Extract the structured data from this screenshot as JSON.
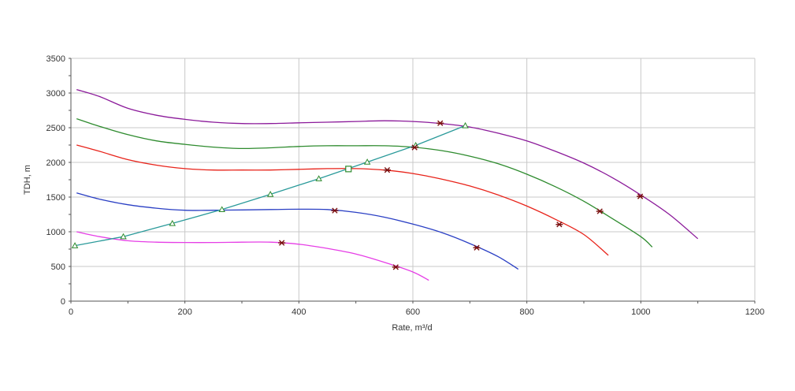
{
  "chart_data": {
    "type": "line",
    "title": "",
    "xlabel": "Rate, m³/d",
    "ylabel": "TDH, m",
    "xlim": [
      0,
      1200
    ],
    "ylim": [
      0,
      3500
    ],
    "x_ticks": [
      0,
      200,
      400,
      600,
      800,
      1000,
      1200
    ],
    "y_ticks": [
      0,
      500,
      1000,
      1500,
      2000,
      2500,
      3000,
      3500
    ],
    "grid": true,
    "legend": "none",
    "series": [
      {
        "color": "#8b1a9a",
        "points": [
          [
            10,
            3050
          ],
          [
            50,
            2950
          ],
          [
            100,
            2780
          ],
          [
            150,
            2680
          ],
          [
            200,
            2620
          ],
          [
            250,
            2580
          ],
          [
            300,
            2560
          ],
          [
            350,
            2560
          ],
          [
            400,
            2570
          ],
          [
            450,
            2580
          ],
          [
            500,
            2590
          ],
          [
            550,
            2600
          ],
          [
            600,
            2590
          ],
          [
            650,
            2560
          ],
          [
            700,
            2510
          ],
          [
            750,
            2420
          ],
          [
            800,
            2310
          ],
          [
            850,
            2160
          ],
          [
            900,
            1990
          ],
          [
            950,
            1780
          ],
          [
            1000,
            1530
          ],
          [
            1050,
            1250
          ],
          [
            1100,
            900
          ]
        ],
        "markers": [
          [
            648,
            2565
          ],
          [
            999,
            1510
          ]
        ]
      },
      {
        "color": "#2e8b2e",
        "points": [
          [
            10,
            2630
          ],
          [
            50,
            2520
          ],
          [
            100,
            2400
          ],
          [
            150,
            2310
          ],
          [
            200,
            2260
          ],
          [
            250,
            2220
          ],
          [
            300,
            2200
          ],
          [
            350,
            2210
          ],
          [
            400,
            2230
          ],
          [
            450,
            2240
          ],
          [
            500,
            2240
          ],
          [
            550,
            2240
          ],
          [
            600,
            2220
          ],
          [
            650,
            2170
          ],
          [
            700,
            2090
          ],
          [
            750,
            1980
          ],
          [
            800,
            1830
          ],
          [
            850,
            1650
          ],
          [
            900,
            1440
          ],
          [
            950,
            1190
          ],
          [
            1000,
            930
          ],
          [
            1020,
            780
          ]
        ],
        "markers": [
          [
            603,
            2215
          ],
          [
            928,
            1295
          ]
        ]
      },
      {
        "color": "#e8231a",
        "points": [
          [
            10,
            2250
          ],
          [
            50,
            2160
          ],
          [
            100,
            2040
          ],
          [
            150,
            1960
          ],
          [
            200,
            1910
          ],
          [
            250,
            1890
          ],
          [
            300,
            1890
          ],
          [
            350,
            1890
          ],
          [
            400,
            1900
          ],
          [
            450,
            1910
          ],
          [
            500,
            1910
          ],
          [
            550,
            1890
          ],
          [
            600,
            1840
          ],
          [
            650,
            1760
          ],
          [
            700,
            1660
          ],
          [
            750,
            1530
          ],
          [
            800,
            1370
          ],
          [
            850,
            1180
          ],
          [
            900,
            960
          ],
          [
            943,
            660
          ]
        ],
        "markers": [
          [
            555,
            1890
          ],
          [
            857,
            1105
          ]
        ]
      },
      {
        "color": "#2a3fc4",
        "points": [
          [
            10,
            1560
          ],
          [
            50,
            1470
          ],
          [
            100,
            1390
          ],
          [
            150,
            1340
          ],
          [
            200,
            1310
          ],
          [
            250,
            1310
          ],
          [
            300,
            1315
          ],
          [
            350,
            1320
          ],
          [
            400,
            1325
          ],
          [
            450,
            1320
          ],
          [
            500,
            1280
          ],
          [
            550,
            1210
          ],
          [
            600,
            1110
          ],
          [
            650,
            990
          ],
          [
            700,
            830
          ],
          [
            750,
            640
          ],
          [
            785,
            460
          ]
        ],
        "markers": [
          [
            463,
            1305
          ],
          [
            712,
            770
          ]
        ]
      },
      {
        "color": "#e63ee6",
        "points": [
          [
            10,
            1000
          ],
          [
            50,
            930
          ],
          [
            100,
            870
          ],
          [
            150,
            850
          ],
          [
            200,
            845
          ],
          [
            250,
            845
          ],
          [
            300,
            850
          ],
          [
            350,
            850
          ],
          [
            400,
            820
          ],
          [
            450,
            760
          ],
          [
            500,
            680
          ],
          [
            550,
            560
          ],
          [
            600,
            420
          ],
          [
            628,
            300
          ]
        ],
        "markers": [
          [
            370,
            840
          ],
          [
            570,
            490
          ]
        ]
      }
    ],
    "bep_line": {
      "color": "#2a9a9a",
      "marker_color": "#2e8b2e",
      "points": [
        [
          7,
          800
        ],
        [
          92,
          930
        ],
        [
          178,
          1120
        ],
        [
          265,
          1320
        ],
        [
          350,
          1540
        ],
        [
          435,
          1765
        ],
        [
          520,
          2005
        ],
        [
          605,
          2245
        ],
        [
          692,
          2530
        ]
      ],
      "square_point": [
        487,
        1905
      ]
    }
  }
}
